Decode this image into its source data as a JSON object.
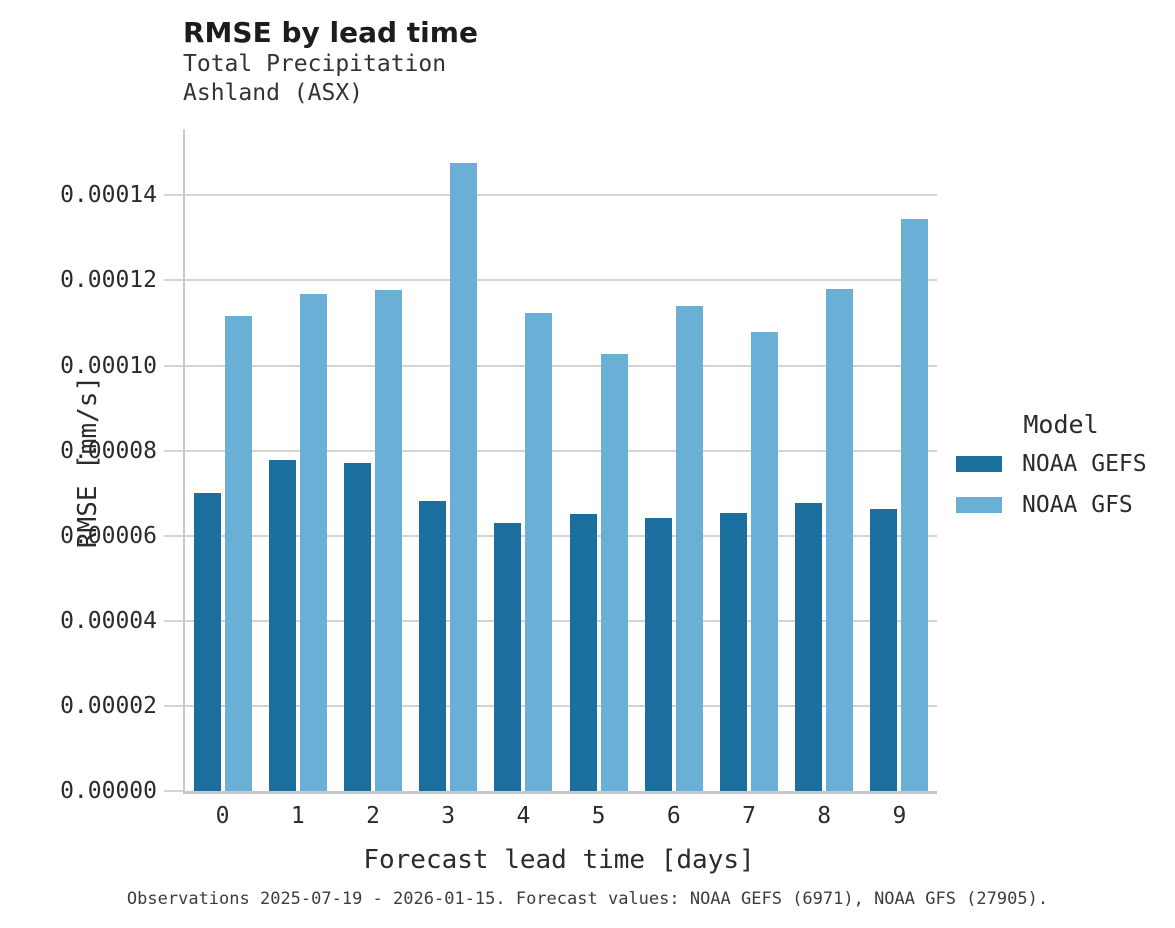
{
  "header": {
    "title": "RMSE by lead time",
    "subtitle_line1": "Total Precipitation",
    "subtitle_line2": "Ashland (ASX)"
  },
  "footer": {
    "caption": "Observations 2025-07-19 - 2026-01-15. Forecast values: NOAA GEFS (6971), NOAA GFS (27905)."
  },
  "chart_data": {
    "type": "bar",
    "title": "RMSE by lead time",
    "subtitle": [
      "Total Precipitation",
      "Ashland (ASX)"
    ],
    "xlabel": "Forecast lead time [days]",
    "ylabel": "RMSE [mm/s]",
    "categories": [
      "0",
      "1",
      "2",
      "3",
      "4",
      "5",
      "6",
      "7",
      "8",
      "9"
    ],
    "series": [
      {
        "name": "NOAA GEFS",
        "color": "#1b6f9e",
        "values": [
          7e-05,
          7.77e-05,
          7.72e-05,
          6.81e-05,
          6.3e-05,
          6.51e-05,
          6.42e-05,
          6.53e-05,
          6.77e-05,
          6.63e-05
        ]
      },
      {
        "name": "NOAA GFS",
        "color": "#69afd6",
        "values": [
          0.0001117,
          0.0001168,
          0.0001177,
          0.0001476,
          0.0001123,
          0.0001028,
          0.0001141,
          0.0001079,
          0.0001181,
          0.0001344
        ]
      }
    ],
    "ylim": [
      0,
      0.0001556
    ],
    "yticks": [
      {
        "value": 0.0,
        "label": "0.00000"
      },
      {
        "value": 2e-05,
        "label": "0.00002"
      },
      {
        "value": 4e-05,
        "label": "0.00004"
      },
      {
        "value": 6e-05,
        "label": "0.00006"
      },
      {
        "value": 8e-05,
        "label": "0.00008"
      },
      {
        "value": 0.0001,
        "label": "0.00010"
      },
      {
        "value": 0.00012,
        "label": "0.00012"
      },
      {
        "value": 0.00014,
        "label": "0.00014"
      }
    ],
    "grid": "horizontal",
    "legend": {
      "title": "Model",
      "position": "right",
      "entries": [
        "NOAA GEFS",
        "NOAA GFS"
      ]
    },
    "colors": {
      "gridline": "#d4d4d4",
      "axis": "#c9c9c9",
      "background": "#ffffff"
    }
  }
}
